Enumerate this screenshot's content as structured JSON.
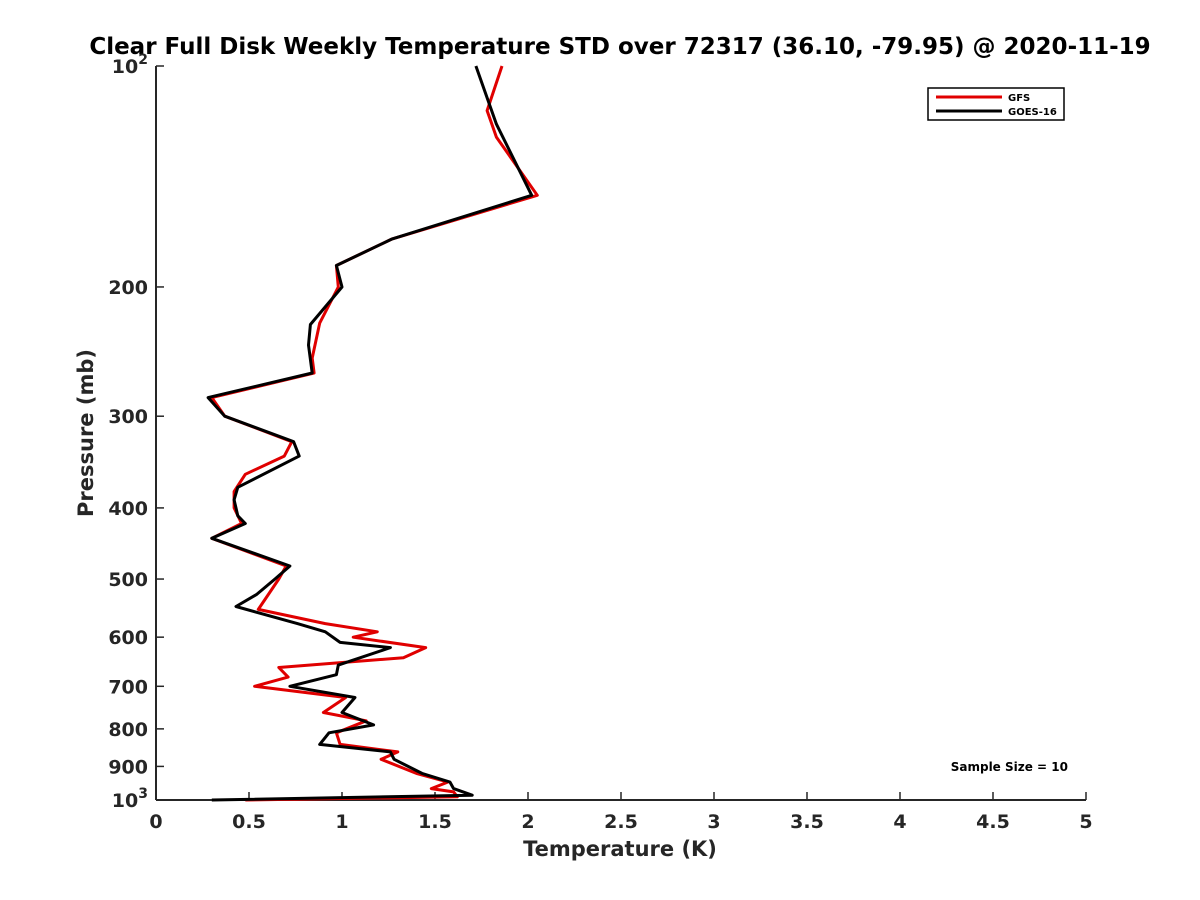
{
  "chart_data": {
    "type": "line",
    "title": "Clear Full Disk Weekly Temperature STD over 72317 (36.10, -79.95) @ 2020-11-19",
    "xlabel": "Temperature (K)",
    "ylabel": "Pressure (mb)",
    "xlim": [
      0,
      5
    ],
    "ylim": [
      1000,
      100
    ],
    "y_scale": "log",
    "y_reversed": true,
    "grid": false,
    "legend_position": "top-right",
    "x_ticks": [
      0,
      0.5,
      1,
      1.5,
      2,
      2.5,
      3,
      3.5,
      4,
      4.5,
      5
    ],
    "x_tick_labels": [
      "0",
      "0.5",
      "1",
      "1.5",
      "2",
      "2.5",
      "3",
      "3.5",
      "4",
      "4.5",
      "5"
    ],
    "y_ticks": [
      {
        "value": 100,
        "base": "10",
        "exp": "2"
      },
      {
        "value": 200,
        "label": "200"
      },
      {
        "value": 300,
        "label": "300"
      },
      {
        "value": 400,
        "label": "400"
      },
      {
        "value": 500,
        "label": "500"
      },
      {
        "value": 600,
        "label": "600"
      },
      {
        "value": 700,
        "label": "700"
      },
      {
        "value": 800,
        "label": "800"
      },
      {
        "value": 900,
        "label": "900"
      },
      {
        "value": 1000,
        "base": "10",
        "exp": "3"
      }
    ],
    "annotation": "Sample Size = 10",
    "series": [
      {
        "name": "GFS",
        "color": "#e00000",
        "points": [
          [
            1.86,
            100
          ],
          [
            1.78,
            115
          ],
          [
            1.83,
            125
          ],
          [
            2.05,
            150
          ],
          [
            1.27,
            172
          ],
          [
            0.97,
            187
          ],
          [
            0.98,
            200
          ],
          [
            0.88,
            224
          ],
          [
            0.84,
            250
          ],
          [
            0.85,
            262
          ],
          [
            0.3,
            283
          ],
          [
            0.37,
            300
          ],
          [
            0.73,
            325
          ],
          [
            0.69,
            340
          ],
          [
            0.48,
            360
          ],
          [
            0.42,
            380
          ],
          [
            0.42,
            400
          ],
          [
            0.46,
            420
          ],
          [
            0.3,
            440
          ],
          [
            0.7,
            480
          ],
          [
            0.66,
            500
          ],
          [
            0.55,
            550
          ],
          [
            0.91,
            575
          ],
          [
            1.19,
            590
          ],
          [
            1.06,
            600
          ],
          [
            1.45,
            620
          ],
          [
            1.33,
            640
          ],
          [
            0.66,
            660
          ],
          [
            0.71,
            680
          ],
          [
            0.53,
            700
          ],
          [
            1.02,
            725
          ],
          [
            0.9,
            760
          ],
          [
            1.13,
            780
          ],
          [
            0.97,
            810
          ],
          [
            0.99,
            840
          ],
          [
            1.3,
            860
          ],
          [
            1.21,
            880
          ],
          [
            1.4,
            920
          ],
          [
            1.57,
            945
          ],
          [
            1.48,
            965
          ],
          [
            1.6,
            975
          ],
          [
            1.62,
            990
          ],
          [
            0.48,
            1000
          ]
        ]
      },
      {
        "name": "GOES-16",
        "color": "#000000",
        "points": [
          [
            1.72,
            100
          ],
          [
            1.83,
            120
          ],
          [
            2.02,
            150
          ],
          [
            1.27,
            172
          ],
          [
            0.97,
            187
          ],
          [
            1.0,
            200
          ],
          [
            0.83,
            225
          ],
          [
            0.82,
            240
          ],
          [
            0.84,
            262
          ],
          [
            0.28,
            283
          ],
          [
            0.37,
            300
          ],
          [
            0.74,
            325
          ],
          [
            0.77,
            340
          ],
          [
            0.44,
            375
          ],
          [
            0.42,
            390
          ],
          [
            0.44,
            410
          ],
          [
            0.48,
            420
          ],
          [
            0.3,
            440
          ],
          [
            0.72,
            480
          ],
          [
            0.64,
            500
          ],
          [
            0.54,
            525
          ],
          [
            0.43,
            545
          ],
          [
            0.76,
            575
          ],
          [
            0.91,
            590
          ],
          [
            0.99,
            610
          ],
          [
            1.26,
            620
          ],
          [
            0.98,
            655
          ],
          [
            0.97,
            675
          ],
          [
            0.72,
            700
          ],
          [
            1.07,
            725
          ],
          [
            1.0,
            760
          ],
          [
            1.17,
            790
          ],
          [
            0.93,
            810
          ],
          [
            0.88,
            840
          ],
          [
            1.26,
            860
          ],
          [
            1.28,
            880
          ],
          [
            1.43,
            920
          ],
          [
            1.58,
            945
          ],
          [
            1.6,
            965
          ],
          [
            1.7,
            985
          ],
          [
            0.3,
            1000
          ]
        ]
      }
    ]
  }
}
